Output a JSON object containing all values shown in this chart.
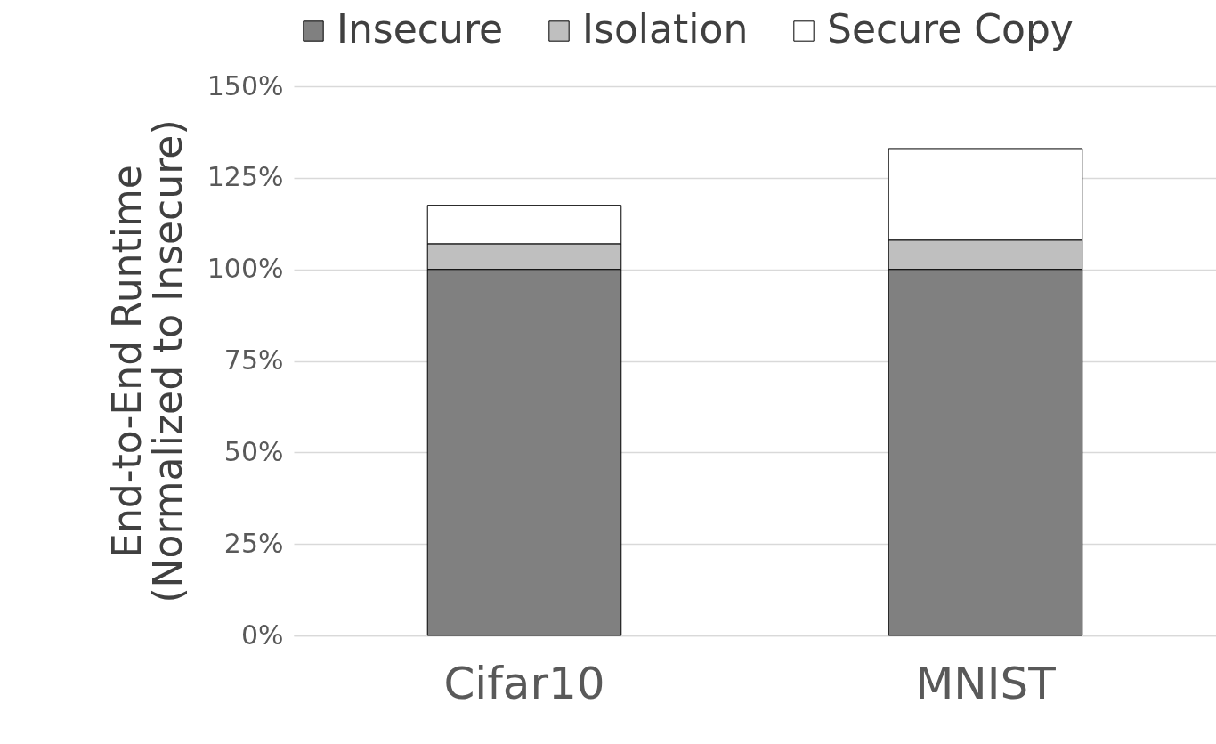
{
  "chart_data": {
    "type": "bar",
    "stacked": true,
    "ylabel": "End-to-End Runtime\n(Normalized to Insecure)",
    "categories": [
      "Cifar10",
      "MNIST"
    ],
    "series": [
      {
        "name": "Insecure",
        "color": "#808080",
        "values": [
          100,
          100
        ]
      },
      {
        "name": "Isolation",
        "color": "#bfbfbf",
        "values": [
          7,
          8
        ]
      },
      {
        "name": "Secure Copy",
        "color": "#ffffff",
        "values": [
          10.5,
          25
        ]
      }
    ],
    "ylim": [
      0,
      150
    ],
    "yticks": [
      {
        "value": 0,
        "label": "0%"
      },
      {
        "value": 25,
        "label": "25%"
      },
      {
        "value": 50,
        "label": "50%"
      },
      {
        "value": 75,
        "label": "75%"
      },
      {
        "value": 100,
        "label": "100%"
      },
      {
        "value": 125,
        "label": "125%"
      },
      {
        "value": 150,
        "label": "150%"
      }
    ],
    "grid": "y",
    "legend": "top"
  }
}
